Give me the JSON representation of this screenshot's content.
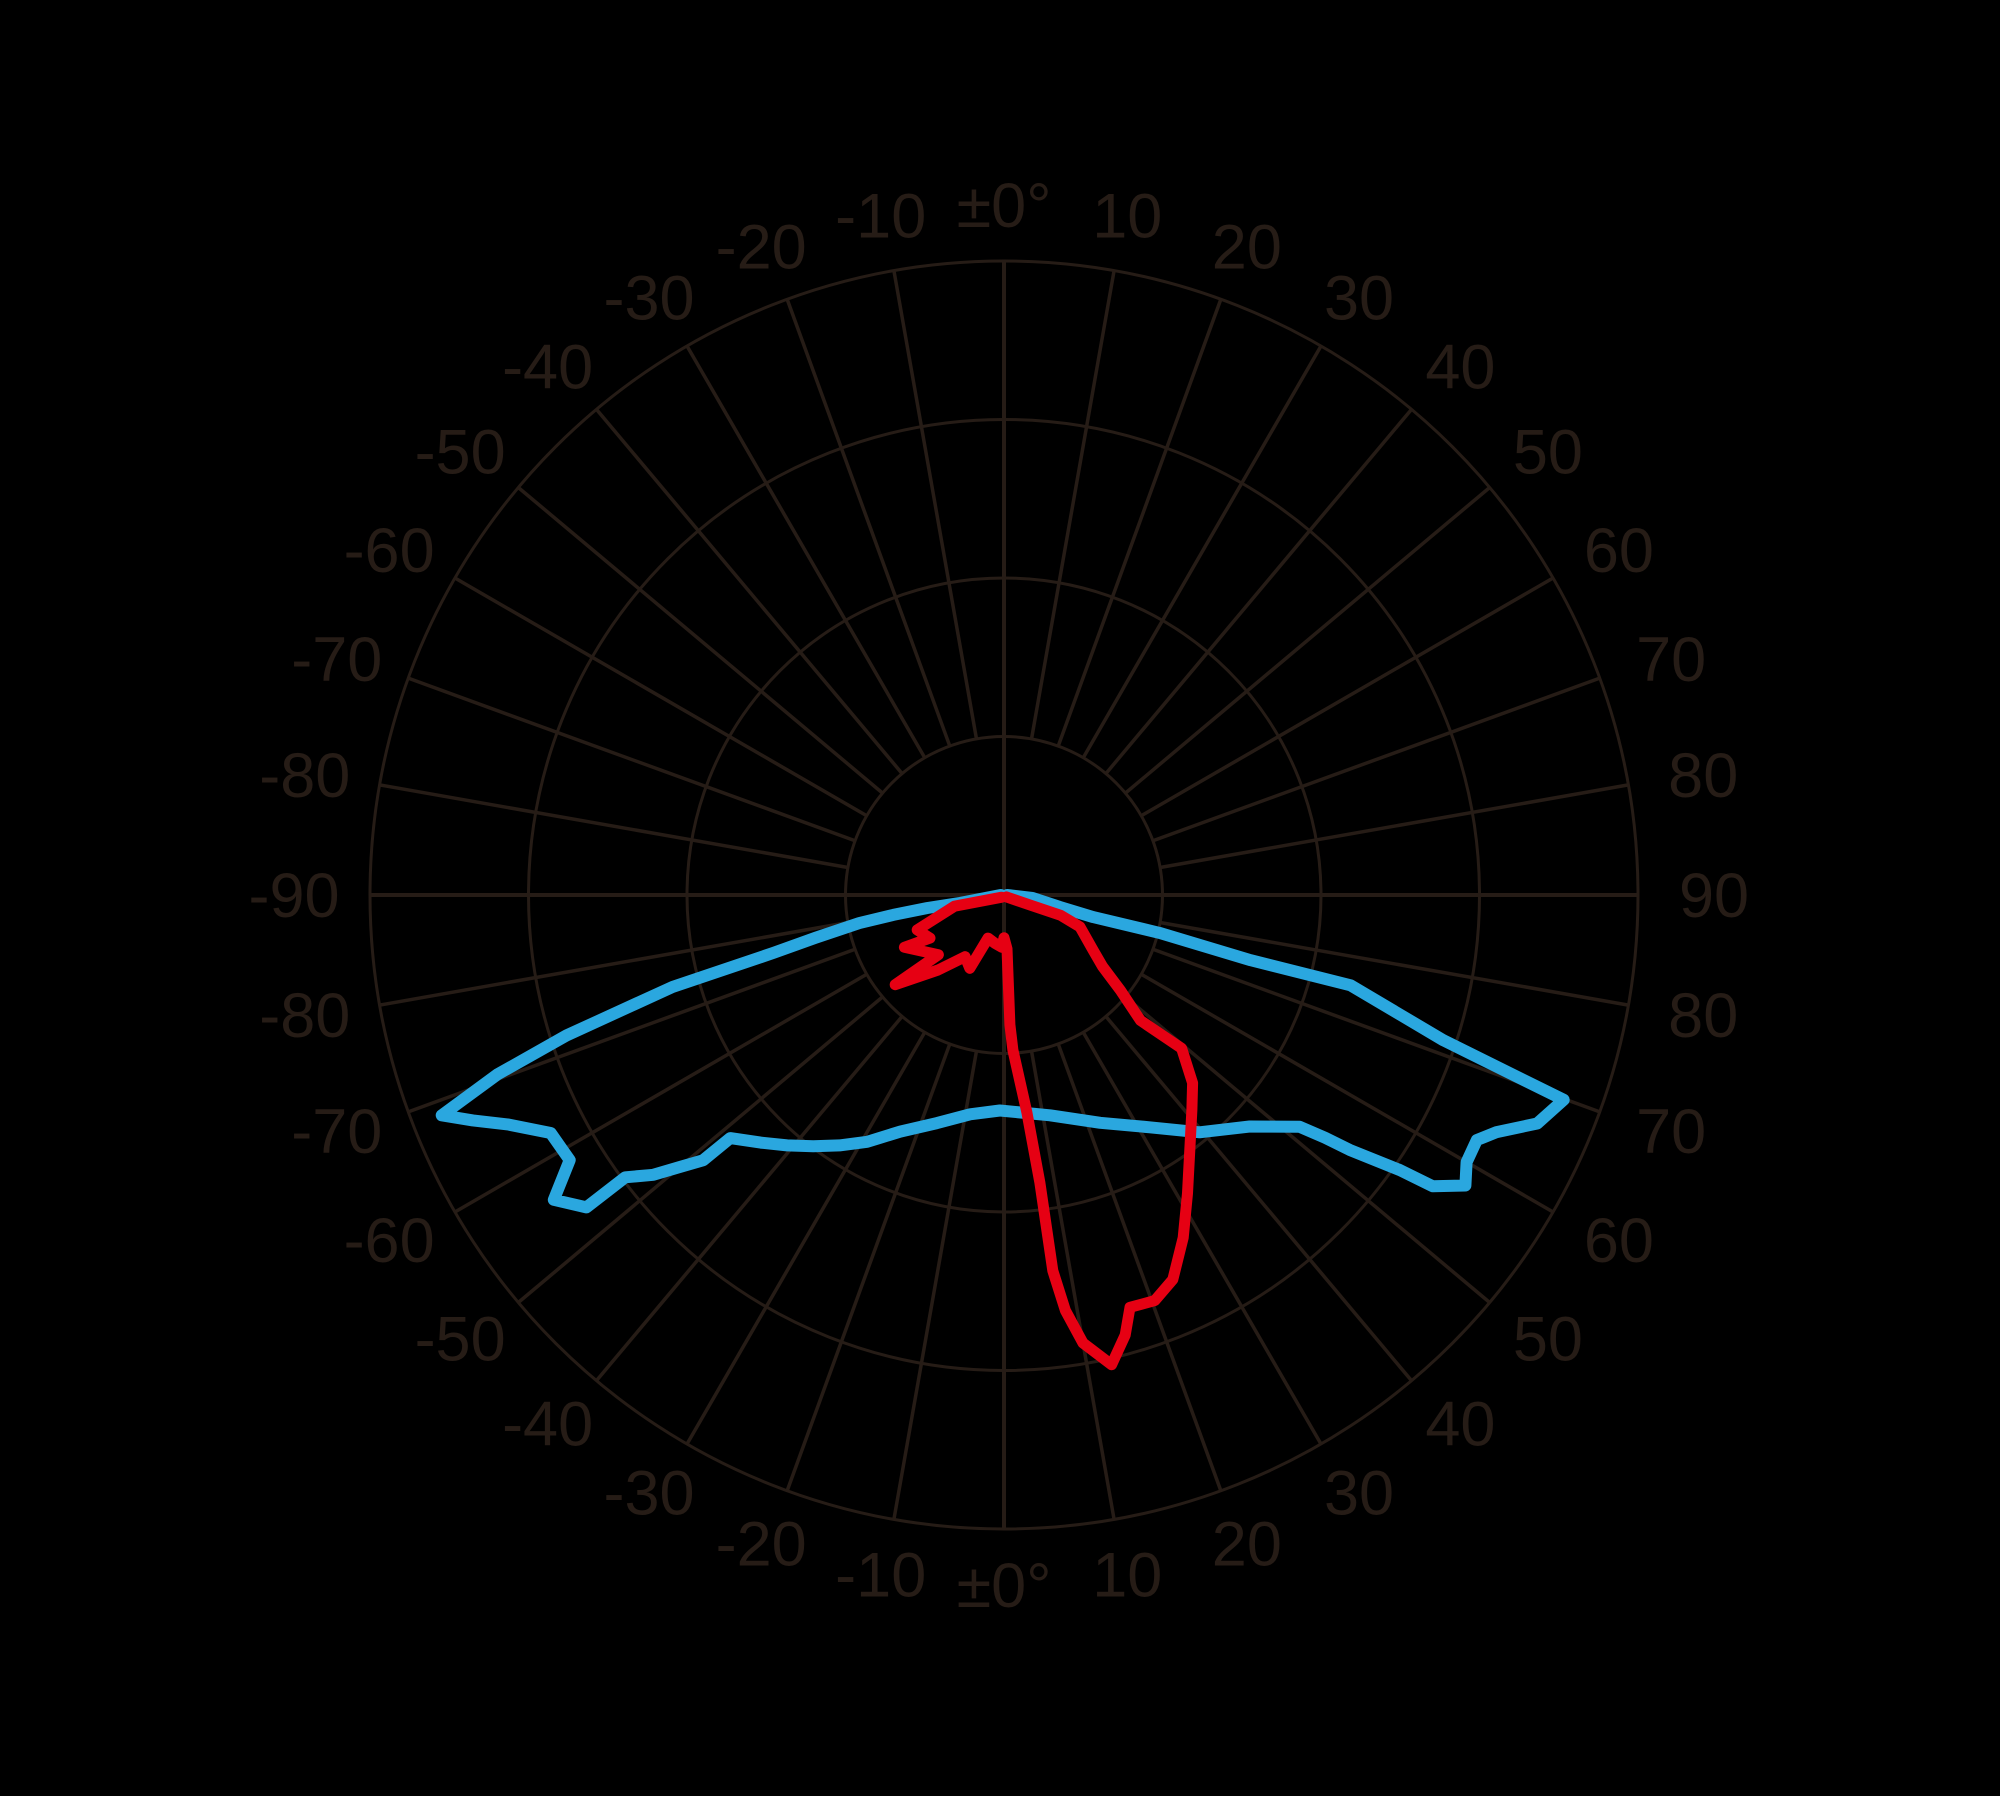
{
  "colors": {
    "background": "#000000",
    "grid": "#261C16",
    "label_text": "#261C16",
    "blue_series": "#2AA7DF",
    "red_series": "#E60013"
  },
  "chart_data": {
    "type": "line",
    "subtype": "polar_intensity_distribution",
    "title": "",
    "legend_position": "none",
    "grid_on": true,
    "rings": 4,
    "ring_tick_labels": [],
    "angle_step_deg": 10,
    "angle_labels_top": [
      "-90",
      "-80",
      "-70",
      "-60",
      "-50",
      "-40",
      "-30",
      "-20",
      "-10",
      "±0°",
      "10",
      "20",
      "30",
      "40",
      "50",
      "60",
      "70",
      "80",
      "90"
    ],
    "angle_labels_bottom": [
      "-80",
      "-70",
      "-60",
      "-50",
      "-40",
      "-30",
      "-20",
      "-10",
      "±0°",
      "10",
      "20",
      "30",
      "40",
      "50",
      "60",
      "70",
      "80"
    ],
    "curve_angle_reference": "0 deg = straight down (nadir); positive angles to the right; r in grid-ring units (outer ring = 4)",
    "series": [
      {
        "name": "blue-curve",
        "color": "#2AA7DF",
        "points": [
          [
            -90,
            0.02
          ],
          [
            -79.7,
            0.28
          ],
          [
            -80.4,
            0.49
          ],
          [
            -79.8,
            0.71
          ],
          [
            -79,
            0.93
          ],
          [
            -77.2,
            1.22
          ],
          [
            -75.9,
            1.5
          ],
          [
            -74.5,
            2.17
          ],
          [
            -72.2,
            2.9
          ],
          [
            -70.5,
            3.39
          ],
          [
            -68.6,
            3.81
          ],
          [
            -67,
            3.64
          ],
          [
            -65.2,
            3.45
          ],
          [
            -62.3,
            3.23
          ],
          [
            -58.6,
            3.21
          ],
          [
            -55.9,
            3.43
          ],
          [
            -53.2,
            3.29
          ],
          [
            -53.3,
            2.98
          ],
          [
            -51.4,
            2.83
          ],
          [
            -50,
            2.67
          ],
          [
            -48.6,
            2.53
          ],
          [
            -48.4,
            2.31
          ],
          [
            -44.5,
            2.19
          ],
          [
            -40.9,
            2.09
          ],
          [
            -37.2,
            1.99
          ],
          [
            -33.3,
            1.89
          ],
          [
            -29,
            1.78
          ],
          [
            -23.7,
            1.63
          ],
          [
            -16.4,
            1.5
          ],
          [
            -8.8,
            1.4
          ],
          [
            -1.1,
            1.36
          ],
          [
            11.8,
            1.42
          ],
          [
            22.9,
            1.56
          ],
          [
            32.1,
            1.73
          ],
          [
            39.5,
            1.94
          ],
          [
            46.7,
            2.13
          ],
          [
            51.9,
            2.37
          ],
          [
            52.9,
            2.54
          ],
          [
            53.6,
            2.71
          ],
          [
            55.2,
            3.04
          ],
          [
            55.8,
            3.27
          ],
          [
            57.8,
            3.44
          ],
          [
            60,
            3.37
          ],
          [
            62.6,
            3.36
          ],
          [
            64.3,
            3.45
          ],
          [
            66.8,
            3.66
          ],
          [
            69.9,
            3.76
          ],
          [
            70.4,
            3.48
          ],
          [
            71.7,
            2.92
          ],
          [
            75.4,
            2.26
          ],
          [
            75.2,
            1.61
          ],
          [
            76.3,
            1.01
          ],
          [
            76.1,
            0.58
          ],
          [
            77.9,
            0.36
          ],
          [
            84.1,
            0.18
          ],
          [
            90,
            0.02
          ]
        ]
      },
      {
        "name": "red-curve",
        "color": "#E60013",
        "points": [
          [
            -45,
            0.02
          ],
          [
            -77.3,
            0.32
          ],
          [
            -68.1,
            0.59
          ],
          [
            -59.8,
            0.54
          ],
          [
            -62.3,
            0.71
          ],
          [
            -47.7,
            0.56
          ],
          [
            -50.5,
            0.89
          ],
          [
            -41.3,
            0.63
          ],
          [
            -32.2,
            0.46
          ],
          [
            -25,
            0.51
          ],
          [
            -20.4,
            0.29
          ],
          [
            -10.6,
            0.31
          ],
          [
            -2.2,
            0.33
          ],
          [
            0,
            0.27
          ],
          [
            3.2,
            0.34
          ],
          [
            2.6,
            0.82
          ],
          [
            3.3,
            0.98
          ],
          [
            6,
            1.38
          ],
          [
            7.1,
            1.83
          ],
          [
            7.4,
            2.39
          ],
          [
            8.4,
            2.65
          ],
          [
            10,
            2.87
          ],
          [
            12.9,
            3.04
          ],
          [
            15.4,
            2.88
          ],
          [
            17,
            2.72
          ],
          [
            20.4,
            2.73
          ],
          [
            23.7,
            2.65
          ],
          [
            27.6,
            2.44
          ],
          [
            31.6,
            2.21
          ],
          [
            36.1,
            1.99
          ],
          [
            41.2,
            1.8
          ],
          [
            45.1,
            1.68
          ],
          [
            49.2,
            1.48
          ],
          [
            47.4,
            1.17
          ],
          [
            50.7,
            0.95
          ],
          [
            54,
            0.77
          ],
          [
            58.3,
            0.66
          ],
          [
            67.2,
            0.52
          ],
          [
            70.3,
            0.38
          ],
          [
            69,
            0.18
          ],
          [
            53,
            0.02
          ]
        ]
      }
    ]
  }
}
